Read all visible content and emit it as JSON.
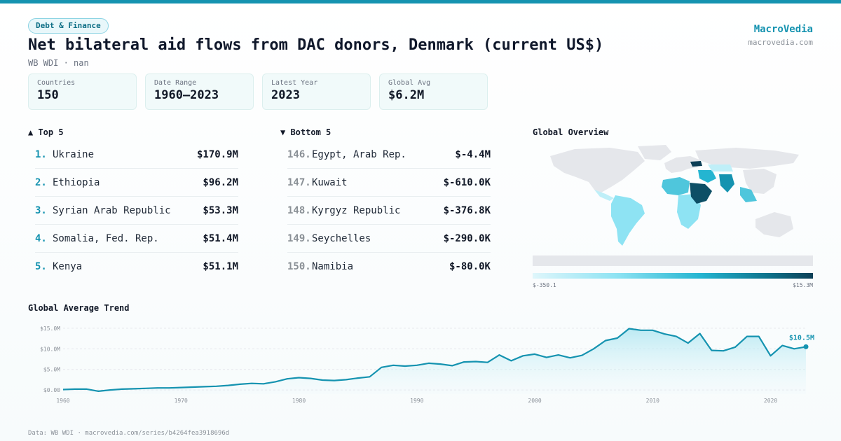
{
  "header": {
    "category_badge": "Debt & Finance",
    "title": "Net bilateral aid flows from DAC donors, Denmark (current US$)",
    "subtitle": "WB WDI · nan",
    "brand_name": "MacroVedia",
    "brand_url": "macrovedia.com"
  },
  "stats": [
    {
      "label": "Countries",
      "value": "150"
    },
    {
      "label": "Date Range",
      "value": "1960–2023"
    },
    {
      "label": "Latest Year",
      "value": "2023"
    },
    {
      "label": "Global Avg",
      "value": "$6.2M"
    }
  ],
  "top5": {
    "title": "▲ Top 5",
    "items": [
      {
        "rank": "1.",
        "name": "Ukraine",
        "value": "$170.9M"
      },
      {
        "rank": "2.",
        "name": "Ethiopia",
        "value": "$96.2M"
      },
      {
        "rank": "3.",
        "name": "Syrian Arab Republic",
        "value": "$53.3M"
      },
      {
        "rank": "4.",
        "name": "Somalia, Fed. Rep.",
        "value": "$51.4M"
      },
      {
        "rank": "5.",
        "name": "Kenya",
        "value": "$51.1M"
      }
    ]
  },
  "bottom5": {
    "title": "▼ Bottom 5",
    "items": [
      {
        "rank": "146.",
        "name": "Egypt, Arab Rep.",
        "value": "$-4.4M"
      },
      {
        "rank": "147.",
        "name": "Kuwait",
        "value": "$-610.0K"
      },
      {
        "rank": "148.",
        "name": "Kyrgyz Republic",
        "value": "$-376.8K"
      },
      {
        "rank": "149.",
        "name": "Seychelles",
        "value": "$-290.0K"
      },
      {
        "rank": "150.",
        "name": "Namibia",
        "value": "$-80.0K"
      }
    ]
  },
  "map": {
    "title": "Global Overview",
    "legend_min": "$-350.1",
    "legend_max": "$15.3M",
    "colors": {
      "land_no_data": "#e5e7eb",
      "low": "#dff6fb",
      "mid": "#24b5d1",
      "high": "#0d3f56"
    }
  },
  "chart_data": {
    "type": "area",
    "title": "Global Average Trend",
    "x": [
      1960,
      1961,
      1962,
      1963,
      1964,
      1965,
      1966,
      1967,
      1968,
      1969,
      1970,
      1971,
      1972,
      1973,
      1974,
      1975,
      1976,
      1977,
      1978,
      1979,
      1980,
      1981,
      1982,
      1983,
      1984,
      1985,
      1986,
      1987,
      1988,
      1989,
      1990,
      1991,
      1992,
      1993,
      1994,
      1995,
      1996,
      1997,
      1998,
      1999,
      2000,
      2001,
      2002,
      2003,
      2004,
      2005,
      2006,
      2007,
      2008,
      2009,
      2010,
      2011,
      2012,
      2013,
      2014,
      2015,
      2016,
      2017,
      2018,
      2019,
      2020,
      2021,
      2022,
      2023
    ],
    "y": [
      0.1,
      0.2,
      0.2,
      -0.3,
      0.0,
      0.2,
      0.3,
      0.4,
      0.5,
      0.5,
      0.6,
      0.7,
      0.8,
      0.9,
      1.1,
      1.4,
      1.6,
      1.5,
      2.0,
      2.7,
      3.0,
      2.8,
      2.4,
      2.3,
      2.5,
      2.9,
      3.2,
      5.5,
      6.0,
      5.8,
      6.0,
      6.5,
      6.3,
      5.9,
      6.8,
      6.9,
      6.7,
      8.5,
      7.1,
      8.3,
      8.7,
      7.9,
      8.5,
      7.8,
      8.4,
      10.0,
      12.0,
      12.6,
      14.9,
      14.5,
      14.5,
      13.6,
      13.0,
      11.4,
      13.7,
      9.6,
      9.5,
      10.4,
      13.0,
      13.0,
      8.3,
      10.8,
      10.0,
      10.5
    ],
    "y_unit": "M",
    "ylim": [
      -1,
      16
    ],
    "yticks": [
      {
        "value": 15,
        "label": "$15.0M"
      },
      {
        "value": 10,
        "label": "$10.0M"
      },
      {
        "value": 5,
        "label": "$5.0M"
      },
      {
        "value": 0,
        "label": "$0.00"
      }
    ],
    "xticks": [
      1960,
      1970,
      1980,
      1990,
      2000,
      2010,
      2020
    ],
    "last_label": "$10.5M",
    "grid": true,
    "line_color": "#1593b0"
  },
  "footer": "Data: WB WDI · macrovedia.com/series/b4264fea3918696d"
}
